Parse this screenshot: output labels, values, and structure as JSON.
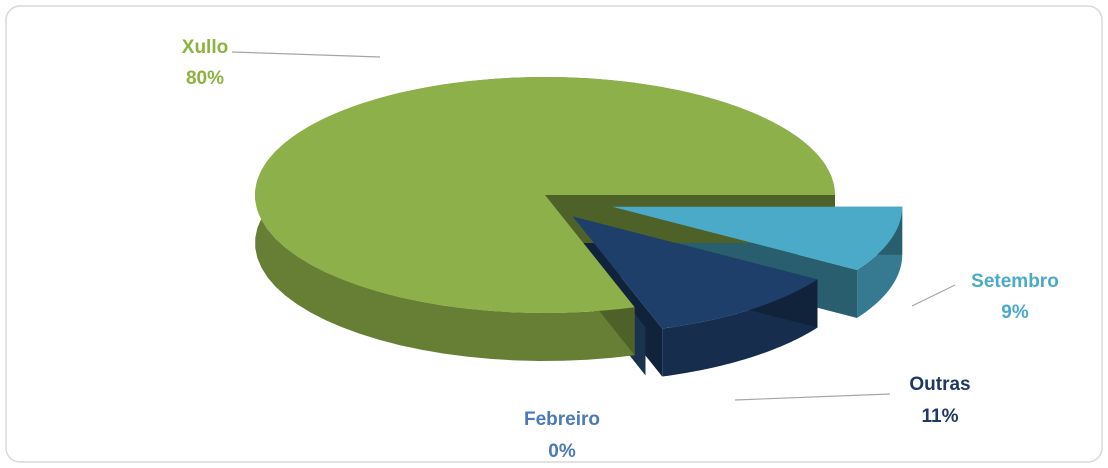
{
  "chart_data": {
    "type": "pie3d",
    "categories": [
      "Setembro",
      "Outras",
      "Febreiro",
      "Xullo"
    ],
    "values": [
      9,
      11,
      0,
      80
    ],
    "value_labels": [
      "9%",
      "11%",
      "0%",
      "80%"
    ],
    "colors": [
      "#4aaac8",
      "#1f3f6b",
      "#2e5a8c",
      "#8db04a"
    ],
    "label_colors": [
      "#4aaac8",
      "#1f3864",
      "#4a7ab8",
      "#8ab43f"
    ]
  }
}
